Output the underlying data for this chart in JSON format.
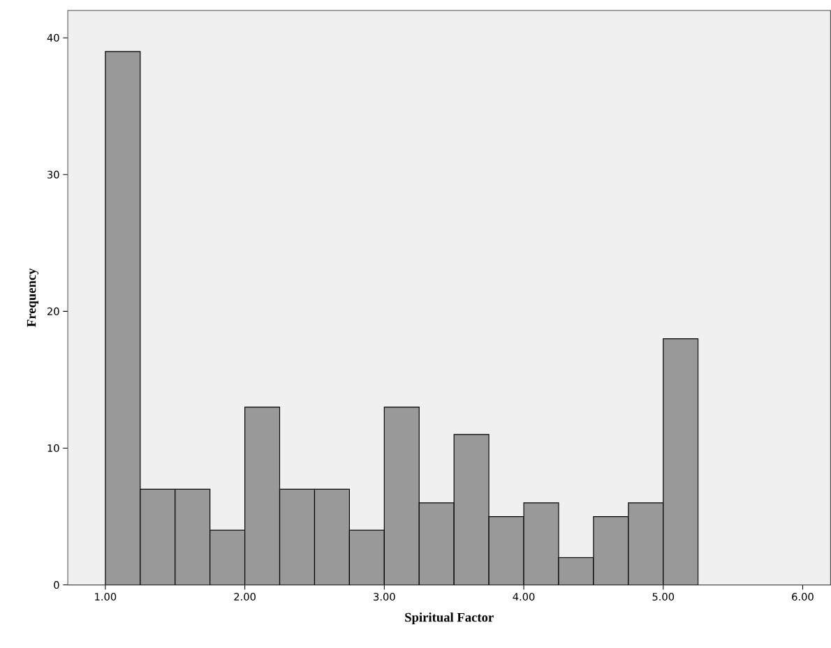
{
  "chart_data": {
    "type": "histogram",
    "xlabel": "Spiritual Factor",
    "ylabel": "Frequency",
    "bins": [
      1.0,
      1.25,
      1.5,
      1.75,
      2.0,
      2.25,
      2.5,
      2.75,
      3.0,
      3.25,
      3.5,
      3.75,
      4.0,
      4.25,
      4.5,
      4.75,
      5.0,
      5.25
    ],
    "values": [
      39,
      7,
      7,
      4,
      13,
      7,
      7,
      4,
      13,
      6,
      11,
      5,
      6,
      2,
      5,
      6,
      18
    ],
    "color": "#999999",
    "xlim": [
      0.73,
      6.2
    ],
    "ylim": [
      0,
      42
    ],
    "xticks": [
      {
        "value": 1,
        "label": "1.00"
      },
      {
        "value": 2,
        "label": "2.00"
      },
      {
        "value": 3,
        "label": "3.00"
      },
      {
        "value": 4,
        "label": "4.00"
      },
      {
        "value": 5,
        "label": "5.00"
      },
      {
        "value": 6,
        "label": "6.00"
      }
    ],
    "yticks": [
      0,
      10,
      20,
      30,
      40
    ],
    "grid": false
  }
}
